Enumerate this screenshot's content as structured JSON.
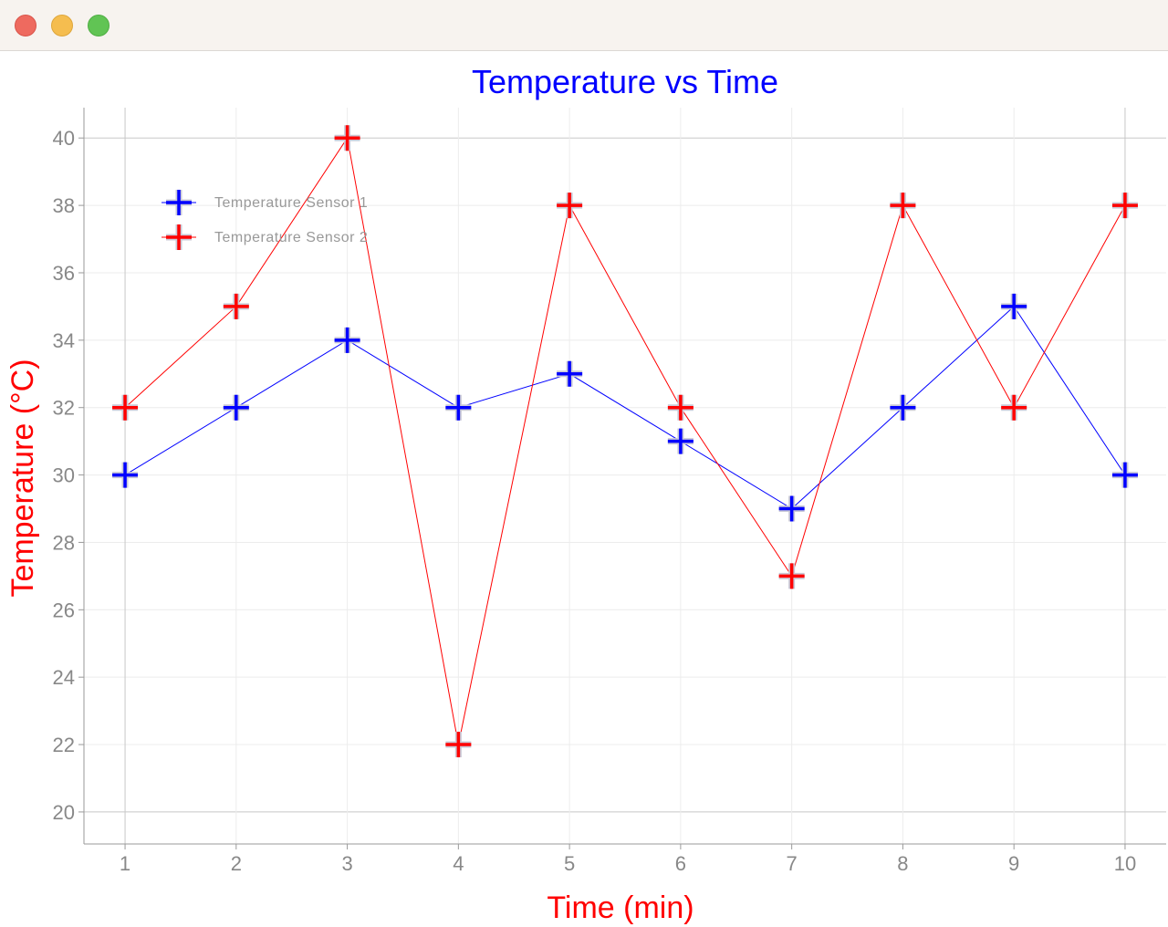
{
  "window": {
    "controls": [
      "close",
      "minimize",
      "maximize"
    ]
  },
  "chart_data": {
    "type": "line",
    "title": "Temperature vs Time",
    "title_color": "#0000ff",
    "xlabel": "Time (min)",
    "ylabel": "Temperature (°C)",
    "axis_label_color": "#ff0000",
    "x": [
      1,
      2,
      3,
      4,
      5,
      6,
      7,
      8,
      9,
      10
    ],
    "xlim": [
      0.63,
      10.37
    ],
    "ylim": [
      19.05,
      40.9
    ],
    "xticks": [
      1,
      2,
      3,
      4,
      5,
      6,
      7,
      8,
      9,
      10
    ],
    "yticks": [
      20,
      22,
      24,
      26,
      28,
      30,
      32,
      34,
      36,
      38,
      40
    ],
    "grid": true,
    "legend_position": "top-left",
    "marker": "plus",
    "series": [
      {
        "name": "Temperature Sensor 1",
        "line_color": "#0000ff",
        "marker_color": "#0000ff",
        "values": [
          30,
          32,
          34,
          32,
          33,
          31,
          29,
          32,
          35,
          30
        ]
      },
      {
        "name": "Temperature Sensor 2",
        "line_color": "#ff0000",
        "marker_color": "#ff0000",
        "values": [
          32,
          35,
          40,
          22,
          38,
          32,
          27,
          38,
          32,
          38
        ]
      }
    ]
  }
}
